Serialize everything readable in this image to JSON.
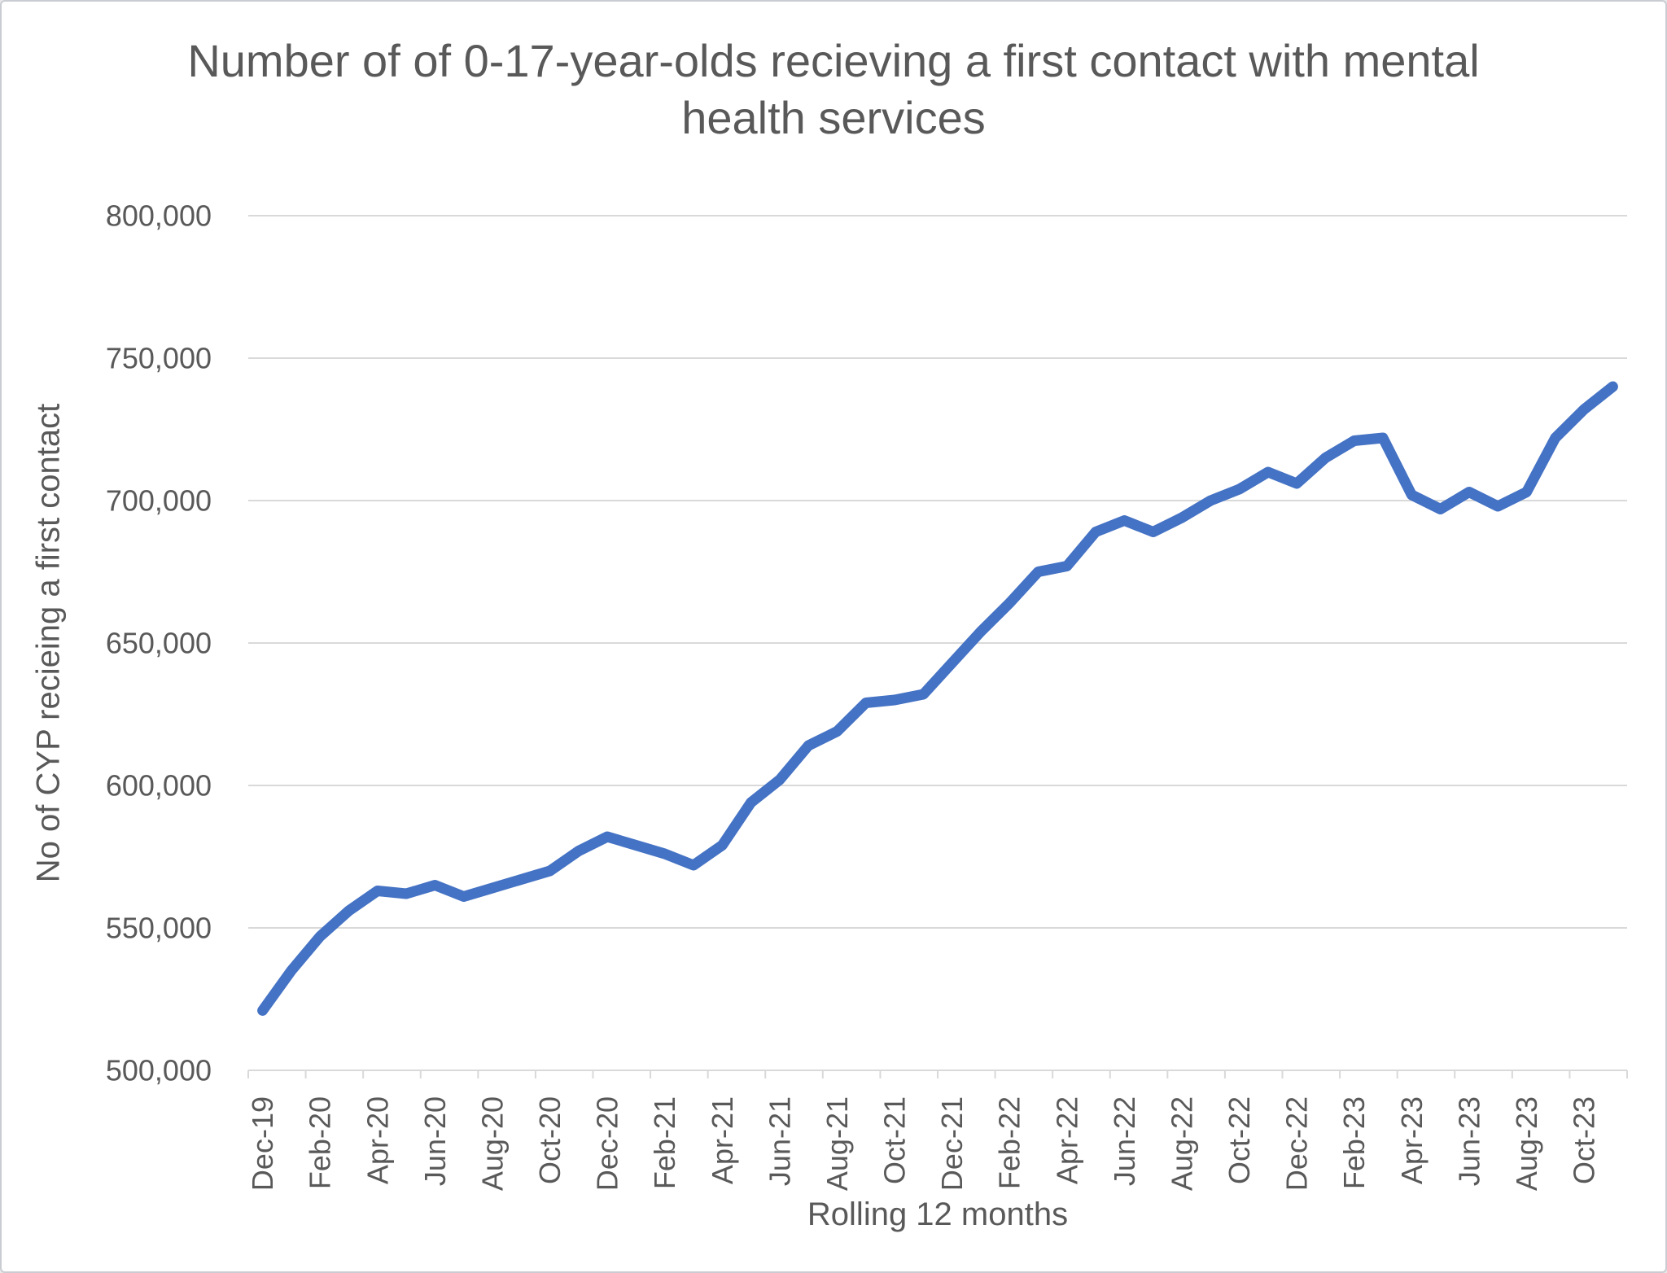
{
  "window": {
    "background": "#ffffff",
    "frame_border_color": "#c9cdd2"
  },
  "chart_data": {
    "type": "line",
    "title": "Number of of 0-17-year-olds recieving a first contact with mental health services",
    "xlabel": "Rolling 12 months",
    "ylabel": "No of CYP recieing a first contact",
    "categories": [
      "Dec-19",
      "Jan-20",
      "Feb-20",
      "Mar-20",
      "Apr-20",
      "May-20",
      "Jun-20",
      "Jul-20",
      "Aug-20",
      "Sep-20",
      "Oct-20",
      "Nov-20",
      "Dec-20",
      "Jan-21",
      "Feb-21",
      "Mar-21",
      "Apr-21",
      "May-21",
      "Jun-21",
      "Jul-21",
      "Aug-21",
      "Sep-21",
      "Oct-21",
      "Nov-21",
      "Dec-21",
      "Jan-22",
      "Feb-22",
      "Mar-22",
      "Apr-22",
      "May-22",
      "Jun-22",
      "Jul-22",
      "Aug-22",
      "Sep-22",
      "Oct-22",
      "Nov-22",
      "Dec-22",
      "Jan-23",
      "Feb-23",
      "Mar-23",
      "Apr-23",
      "May-23",
      "Jun-23",
      "Jul-23",
      "Aug-23",
      "Sep-23",
      "Oct-23",
      "Nov-23"
    ],
    "values": [
      521000,
      535000,
      547000,
      556000,
      563000,
      562000,
      565000,
      561000,
      564000,
      567000,
      570000,
      577000,
      582000,
      579000,
      576000,
      572000,
      579000,
      594000,
      602000,
      614000,
      619000,
      629000,
      630000,
      632000,
      643000,
      654000,
      664000,
      675000,
      677000,
      689000,
      693000,
      689000,
      694000,
      700000,
      704000,
      710000,
      706000,
      715000,
      721000,
      722000,
      702000,
      697000,
      703000,
      698000,
      703000,
      722000,
      732000,
      740000
    ],
    "series_name": "No of CYP recieving a first contact",
    "x_label_every": 2,
    "ylim": [
      500000,
      800000
    ],
    "y_tick_step": 50000,
    "grid": true,
    "legend_position": "none",
    "line_color": "#4472C4",
    "grid_color": "#D9D9D9",
    "axis_color": "#D9D9D9",
    "tick_text_color": "#595959",
    "title_text_color": "#595959",
    "line_width": 13
  }
}
